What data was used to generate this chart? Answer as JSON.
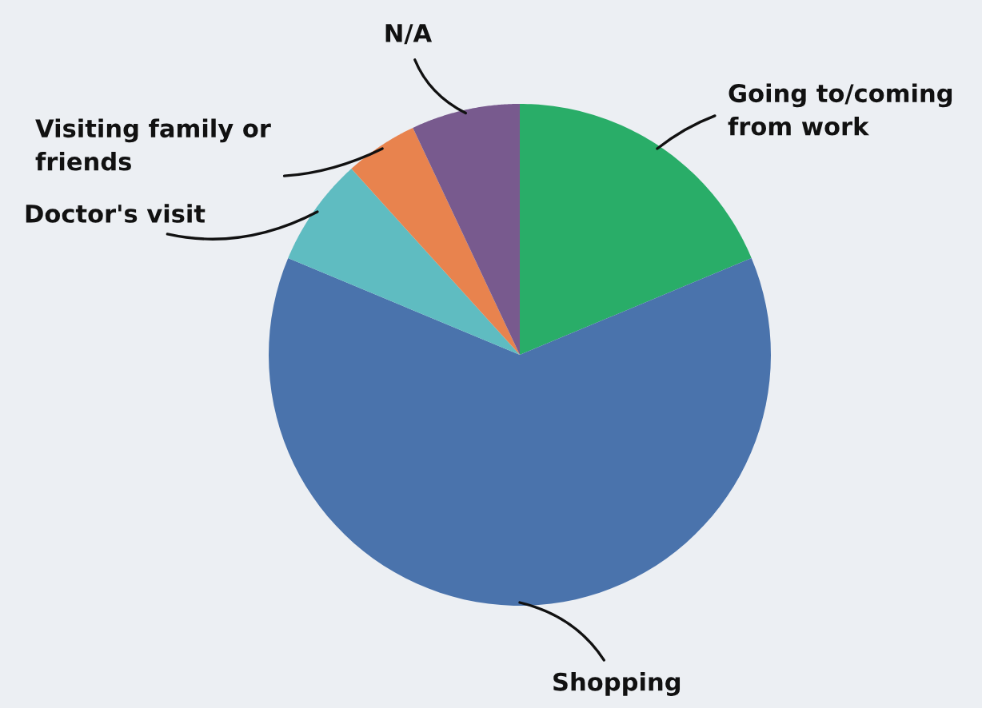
{
  "chart_data": {
    "type": "pie",
    "categories": [
      "Going to/coming\nfrom work",
      "Shopping",
      "Doctor's visit",
      "Visiting family or\nfriends",
      "N/A"
    ],
    "values": [
      18.7,
      62.6,
      7.0,
      4.7,
      7.0
    ],
    "colors": [
      "#29ad68",
      "#4a73ac",
      "#5fbcc1",
      "#e8834e",
      "#785a8e"
    ],
    "legend": false
  }
}
